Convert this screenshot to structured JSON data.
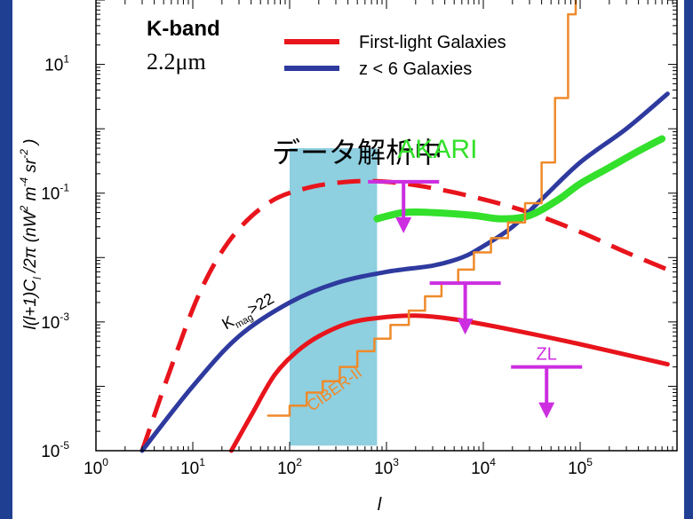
{
  "chart_data": {
    "type": "line",
    "xlabel": "l",
    "ylabel_parts": [
      "l(l+1)C",
      "l",
      " /2π (nW",
      "2",
      " m",
      "-4",
      " sr",
      "-2",
      " )"
    ],
    "x_scale": "log",
    "y_scale": "log",
    "xlim": [
      1,
      1000000
    ],
    "ylim": [
      1e-05,
      100
    ],
    "x_ticks": [
      {
        "value": 1,
        "base": "10",
        "exp": "0"
      },
      {
        "value": 10,
        "base": "10",
        "exp": "1"
      },
      {
        "value": 100,
        "base": "10",
        "exp": "2"
      },
      {
        "value": 1000,
        "base": "10",
        "exp": "3"
      },
      {
        "value": 10000,
        "base": "10",
        "exp": "4"
      },
      {
        "value": 100000,
        "base": "10",
        "exp": "5"
      }
    ],
    "y_ticks": [
      {
        "value": 1e-05,
        "base": "10",
        "exp": "-5"
      },
      {
        "value": 0.001,
        "base": "10",
        "exp": "-3"
      },
      {
        "value": 0.1,
        "base": "10",
        "exp": "-1"
      },
      {
        "value": 10,
        "base": "10",
        "exp": "1"
      }
    ],
    "band_title": "K-band",
    "band_wavelength": "2.2μm",
    "legend": [
      {
        "label": "First-light Galaxies",
        "color": "#e8141c"
      },
      {
        "label": "z < 6 Galaxies",
        "color": "#2e3a9e"
      }
    ],
    "shaded_region": {
      "x_range": [
        100,
        800
      ],
      "color": "#8ecfe0",
      "label": "データ解析中"
    },
    "series": [
      {
        "name": "First-light Galaxies",
        "color": "#e8141c",
        "points": [
          [
            25,
            1e-05
          ],
          [
            40,
            3.5e-05
          ],
          [
            70,
            0.00015
          ],
          [
            120,
            0.00035
          ],
          [
            200,
            0.0006
          ],
          [
            400,
            0.00095
          ],
          [
            800,
            0.00115
          ],
          [
            2000,
            0.00125
          ],
          [
            5000,
            0.0011
          ],
          [
            20000,
            0.00075
          ],
          [
            100000,
            0.00045
          ],
          [
            800000,
            0.00022
          ]
        ]
      },
      {
        "name": "First-light Galaxies (dashed)",
        "color": "#e8141c",
        "dashed": true,
        "points": [
          [
            3,
            1e-05
          ],
          [
            6,
            0.0002
          ],
          [
            12,
            0.003
          ],
          [
            25,
            0.02
          ],
          [
            60,
            0.07
          ],
          [
            150,
            0.12
          ],
          [
            400,
            0.15
          ],
          [
            1000,
            0.15
          ],
          [
            3000,
            0.12
          ],
          [
            10000,
            0.08
          ],
          [
            30000,
            0.05
          ],
          [
            100000,
            0.025
          ],
          [
            300000,
            0.012
          ],
          [
            800000,
            0.0065
          ]
        ]
      },
      {
        "name": "z < 6 Galaxies",
        "color": "#2e3a9e",
        "points": [
          [
            3,
            1e-05
          ],
          [
            10,
            0.0001
          ],
          [
            30,
            0.0006
          ],
          [
            100,
            0.002
          ],
          [
            300,
            0.004
          ],
          [
            1000,
            0.006
          ],
          [
            3000,
            0.0075
          ],
          [
            6000,
            0.01
          ],
          [
            10000,
            0.015
          ],
          [
            20000,
            0.03
          ],
          [
            40000,
            0.08
          ],
          [
            100000,
            0.3
          ],
          [
            300000,
            1.0
          ],
          [
            800000,
            3.5
          ]
        ]
      },
      {
        "name": "AKARI",
        "color": "#33e02b",
        "label": "AKARI",
        "points": [
          [
            800,
            0.04
          ],
          [
            1500,
            0.05
          ],
          [
            3000,
            0.05
          ],
          [
            8000,
            0.045
          ],
          [
            15000,
            0.04
          ],
          [
            30000,
            0.045
          ],
          [
            60000,
            0.08
          ],
          [
            100000,
            0.14
          ],
          [
            200000,
            0.25
          ],
          [
            400000,
            0.45
          ],
          [
            700000,
            0.7
          ]
        ]
      },
      {
        "name": "CIBER-II",
        "color": "#ef8a2a",
        "label": "CIBER-II",
        "step": true,
        "points": [
          [
            60,
            3.5e-05
          ],
          [
            100,
            3.5e-05
          ],
          [
            100,
            5e-05
          ],
          [
            150,
            5e-05
          ],
          [
            150,
            8e-05
          ],
          [
            220,
            8e-05
          ],
          [
            220,
            0.00012
          ],
          [
            330,
            0.00012
          ],
          [
            330,
            0.0002
          ],
          [
            500,
            0.0002
          ],
          [
            500,
            0.00035
          ],
          [
            750,
            0.00035
          ],
          [
            750,
            0.00055
          ],
          [
            1100,
            0.00055
          ],
          [
            1100,
            0.0009
          ],
          [
            1700,
            0.0009
          ],
          [
            1700,
            0.0015
          ],
          [
            2500,
            0.0015
          ],
          [
            2500,
            0.0025
          ],
          [
            3700,
            0.0025
          ],
          [
            3700,
            0.004
          ],
          [
            5500,
            0.004
          ],
          [
            5500,
            0.0065
          ],
          [
            8000,
            0.0065
          ],
          [
            8000,
            0.012
          ],
          [
            12000,
            0.012
          ],
          [
            12000,
            0.02
          ],
          [
            18000,
            0.02
          ],
          [
            18000,
            0.035
          ],
          [
            27000,
            0.035
          ],
          [
            27000,
            0.07
          ],
          [
            40000,
            0.07
          ],
          [
            40000,
            0.3
          ],
          [
            55000,
            0.3
          ],
          [
            55000,
            3
          ],
          [
            75000,
            3
          ],
          [
            75000,
            60
          ],
          [
            90000,
            60
          ],
          [
            90000,
            200
          ]
        ]
      },
      {
        "name": "Kmag>22",
        "color": "#8b5060",
        "label_base": "K",
        "label_sub": "mag",
        "label_rest": ">22",
        "dashed": true,
        "points": [
          [
            3,
            1e-05
          ],
          [
            6,
            0.0002
          ],
          [
            12,
            0.003
          ],
          [
            25,
            0.02
          ],
          [
            60,
            0.07
          ],
          [
            150,
            0.12
          ],
          [
            400,
            0.15
          ],
          [
            800,
            0.15
          ]
        ]
      }
    ],
    "upper_limits": [
      {
        "x": 1500,
        "y": 0.15,
        "color": "#cc2ee0",
        "label": ""
      },
      {
        "x": 6500,
        "y": 0.004,
        "color": "#cc2ee0",
        "label": ""
      },
      {
        "x": 45000,
        "y": 0.0002,
        "color": "#cc2ee0",
        "label": "ZL"
      }
    ]
  }
}
